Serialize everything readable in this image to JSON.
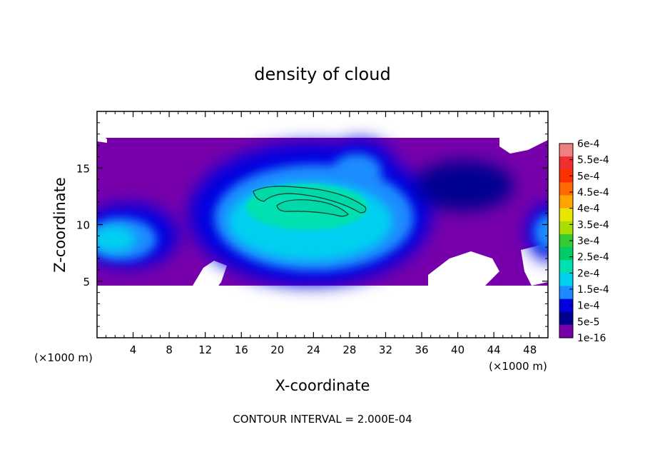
{
  "chart_data": {
    "type": "heatmap",
    "title": "density of cloud",
    "xlabel": "X-coordinate",
    "ylabel": "Z-coordinate",
    "x_unit_label": "(×1000 m)",
    "x_unit_label_right": "(×1000 m)",
    "footer": "CONTOUR INTERVAL = 2.000E-04",
    "xlim": [
      0,
      50
    ],
    "ylim": [
      0,
      20
    ],
    "x_ticks": [
      4,
      8,
      12,
      16,
      20,
      24,
      28,
      32,
      36,
      40,
      44,
      48
    ],
    "y_ticks": [
      5,
      10,
      15
    ],
    "colorbar": {
      "labels": [
        "6e-4",
        "5.5e-4",
        "5e-4",
        "4.5e-4",
        "4e-4",
        "3.5e-4",
        "3e-4",
        "2.5e-4",
        "2e-4",
        "1.5e-4",
        "1e-4",
        "5e-5",
        "1e-16"
      ],
      "colors": [
        "#f08080",
        "#f03030",
        "#ff3000",
        "#ff6a00",
        "#ffa500",
        "#e6e600",
        "#aadd00",
        "#33cc33",
        "#00cc66",
        "#00e0b0",
        "#00d0f0",
        "#1a8cff",
        "#0000e0",
        "#000090",
        "#7700aa"
      ]
    },
    "cloud_region": {
      "x_range": [
        0,
        50
      ],
      "z_range": [
        4.5,
        17.5
      ],
      "core": {
        "x": [
          17,
          30
        ],
        "z": [
          10.5,
          13.5
        ],
        "value_range": "2e-4 to 2.5e-4"
      },
      "main_body": {
        "x": [
          14,
          35
        ],
        "z": [
          5.5,
          15
        ],
        "value_range": "1e-4 to 2e-4"
      },
      "left_feature": {
        "x": [
          0,
          9
        ],
        "z": [
          5.5,
          11
        ],
        "value_range": "5e-5 to 1.5e-4"
      },
      "right_feature": {
        "x": [
          48,
          50
        ],
        "z": [
          7,
          10.5
        ],
        "value_range": "1e-4 to 1.5e-4"
      },
      "background_value": "1e-16"
    },
    "grid": false
  }
}
